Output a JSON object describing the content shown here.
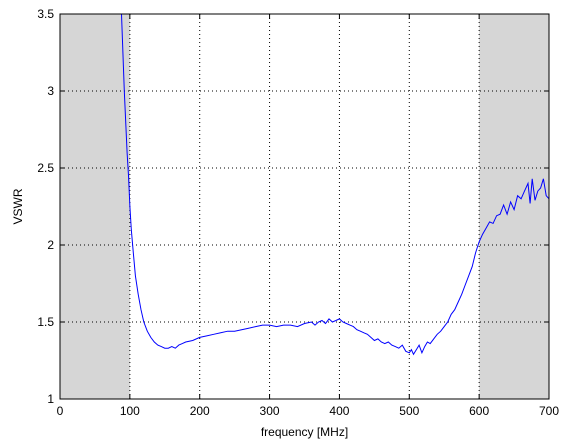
{
  "colors": {
    "series": "#0000ff",
    "shade": "#d6d6d6",
    "grid": "#000000",
    "axis": "#000000",
    "background": "#ffffff"
  },
  "chart_data": {
    "type": "line",
    "title": "",
    "xlabel": "frequency [MHz]",
    "ylabel": "VSWR",
    "xlim": [
      0,
      700
    ],
    "ylim": [
      1,
      3.5
    ],
    "xticks": [
      0,
      100,
      200,
      300,
      400,
      500,
      600,
      700
    ],
    "yticks": [
      1,
      1.5,
      2,
      2.5,
      3,
      3.5
    ],
    "xtick_labels": [
      "0",
      "100",
      "200",
      "300",
      "400",
      "500",
      "600",
      "700"
    ],
    "ytick_labels": [
      "1",
      "1.5",
      "2",
      "2.5",
      "3",
      "3.5"
    ],
    "grid": true,
    "grid_style": "dotted",
    "shaded_regions": [
      {
        "x": [
          0,
          100
        ]
      },
      {
        "x": [
          600,
          700
        ]
      }
    ],
    "series": [
      {
        "x": [
          88,
          90,
          92,
          94,
          96,
          98,
          100,
          102,
          105,
          108,
          112,
          116,
          120,
          125,
          130,
          135,
          140,
          145,
          150,
          155,
          160,
          165,
          170,
          175,
          180,
          190,
          200,
          210,
          220,
          230,
          240,
          250,
          260,
          270,
          280,
          290,
          300,
          310,
          320,
          330,
          340,
          350,
          360,
          365,
          370,
          375,
          380,
          385,
          390,
          395,
          400,
          405,
          410,
          415,
          420,
          425,
          430,
          435,
          440,
          445,
          450,
          455,
          460,
          465,
          470,
          475,
          480,
          485,
          490,
          495,
          500,
          503,
          506,
          510,
          514,
          518,
          522,
          526,
          530,
          535,
          540,
          545,
          550,
          555,
          560,
          565,
          570,
          575,
          580,
          585,
          590,
          595,
          600,
          605,
          610,
          615,
          620,
          625,
          630,
          635,
          640,
          645,
          650,
          655,
          660,
          665,
          670,
          673,
          676,
          680,
          684,
          688,
          692,
          696,
          700
        ],
        "y": [
          3.5,
          3.25,
          3.0,
          2.8,
          2.6,
          2.45,
          2.25,
          2.1,
          1.95,
          1.8,
          1.68,
          1.58,
          1.5,
          1.44,
          1.4,
          1.37,
          1.35,
          1.34,
          1.33,
          1.33,
          1.34,
          1.33,
          1.35,
          1.36,
          1.37,
          1.38,
          1.4,
          1.41,
          1.42,
          1.43,
          1.44,
          1.44,
          1.45,
          1.46,
          1.47,
          1.48,
          1.48,
          1.47,
          1.48,
          1.48,
          1.47,
          1.49,
          1.5,
          1.48,
          1.5,
          1.51,
          1.49,
          1.52,
          1.5,
          1.51,
          1.52,
          1.5,
          1.49,
          1.48,
          1.47,
          1.45,
          1.44,
          1.43,
          1.42,
          1.4,
          1.38,
          1.39,
          1.37,
          1.36,
          1.37,
          1.35,
          1.34,
          1.33,
          1.35,
          1.31,
          1.3,
          1.32,
          1.29,
          1.32,
          1.35,
          1.3,
          1.34,
          1.37,
          1.36,
          1.39,
          1.42,
          1.44,
          1.47,
          1.5,
          1.55,
          1.58,
          1.63,
          1.68,
          1.74,
          1.8,
          1.86,
          1.95,
          2.02,
          2.07,
          2.11,
          2.15,
          2.14,
          2.19,
          2.2,
          2.26,
          2.2,
          2.28,
          2.23,
          2.32,
          2.3,
          2.35,
          2.4,
          2.27,
          2.43,
          2.29,
          2.35,
          2.37,
          2.43,
          2.32,
          2.3
        ]
      }
    ]
  }
}
